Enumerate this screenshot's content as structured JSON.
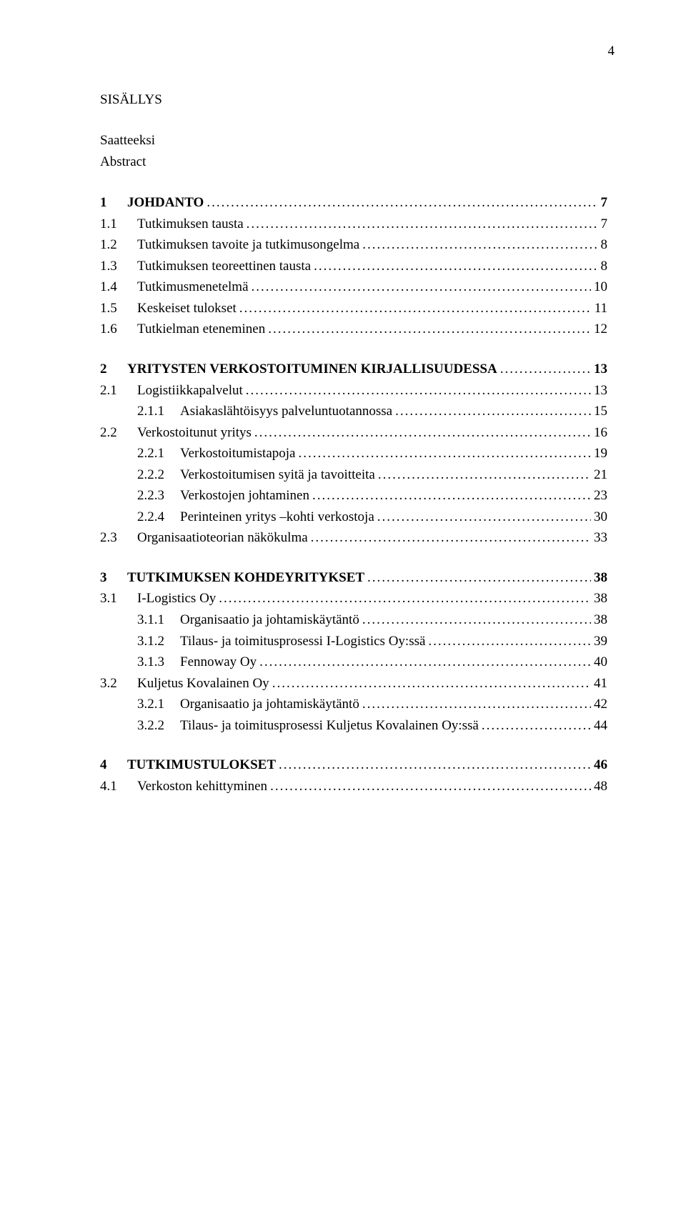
{
  "page_number": "4",
  "doc_title": "SISÄLLYS",
  "front_matter": [
    "Saatteeksi",
    "Abstract"
  ],
  "toc": [
    {
      "num": "1",
      "label": "JOHDANTO",
      "page": "7",
      "level": 1,
      "children": [
        {
          "num": "1.1",
          "label": "Tutkimuksen tausta",
          "page": "7",
          "level": 2
        },
        {
          "num": "1.2",
          "label": "Tutkimuksen tavoite ja tutkimusongelma",
          "page": "8",
          "level": 2
        },
        {
          "num": "1.3",
          "label": "Tutkimuksen teoreettinen tausta",
          "page": "8",
          "level": 2
        },
        {
          "num": "1.4",
          "label": "Tutkimusmenetelmä",
          "page": "10",
          "level": 2
        },
        {
          "num": "1.5",
          "label": "Keskeiset tulokset",
          "page": "11",
          "level": 2
        },
        {
          "num": "1.6",
          "label": "Tutkielman eteneminen",
          "page": "12",
          "level": 2
        }
      ]
    },
    {
      "num": "2",
      "label": "YRITYSTEN VERKOSTOITUMINEN KIRJALLISUUDESSA",
      "page": "13",
      "level": 1,
      "children": [
        {
          "num": "2.1",
          "label": "Logistiikkapalvelut",
          "page": "13",
          "level": 2,
          "children": [
            {
              "num": "2.1.1",
              "label": "Asiakaslähtöisyys palveluntuotannossa",
              "page": "15",
              "level": 3
            }
          ]
        },
        {
          "num": "2.2",
          "label": "Verkostoitunut yritys",
          "page": "16",
          "level": 2,
          "children": [
            {
              "num": "2.2.1",
              "label": "Verkostoitumistapoja",
              "page": "19",
              "level": 3
            },
            {
              "num": "2.2.2",
              "label": "Verkostoitumisen syitä ja tavoitteita",
              "page": "21",
              "level": 3
            },
            {
              "num": "2.2.3",
              "label": "Verkostojen johtaminen",
              "page": "23",
              "level": 3
            },
            {
              "num": "2.2.4",
              "label": "Perinteinen yritys –kohti verkostoja",
              "page": "30",
              "level": 3
            }
          ]
        },
        {
          "num": "2.3",
          "label": "Organisaatioteorian näkökulma",
          "page": "33",
          "level": 2
        }
      ]
    },
    {
      "num": "3",
      "label": "TUTKIMUKSEN KOHDEYRITYKSET",
      "page": "38",
      "level": 1,
      "children": [
        {
          "num": "3.1",
          "label": "I-Logistics Oy",
          "page": "38",
          "level": 2,
          "children": [
            {
              "num": "3.1.1",
              "label": "Organisaatio ja johtamiskäytäntö",
              "page": "38",
              "level": 3
            },
            {
              "num": "3.1.2",
              "label": "Tilaus- ja toimitusprosessi I-Logistics Oy:ssä",
              "page": "39",
              "level": 3
            },
            {
              "num": "3.1.3",
              "label": "Fennoway Oy",
              "page": "40",
              "level": 3
            }
          ]
        },
        {
          "num": "3.2",
          "label": "Kuljetus Kovalainen Oy",
          "page": "41",
          "level": 2,
          "children": [
            {
              "num": "3.2.1",
              "label": "Organisaatio ja johtamiskäytäntö",
              "page": "42",
              "level": 3
            },
            {
              "num": "3.2.2",
              "label": "Tilaus- ja toimitusprosessi Kuljetus Kovalainen Oy:ssä",
              "page": "44",
              "level": 3
            }
          ]
        }
      ]
    },
    {
      "num": "4",
      "label": "TUTKIMUSTULOKSET",
      "page": "46",
      "level": 1,
      "children": [
        {
          "num": "4.1",
          "label": "Verkoston kehittyminen",
          "page": "48",
          "level": 2
        }
      ]
    }
  ]
}
